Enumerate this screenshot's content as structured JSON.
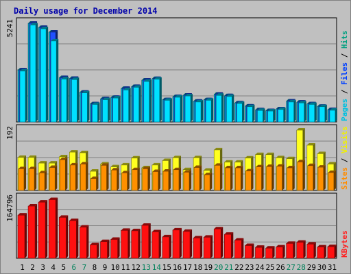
{
  "chart_data": {
    "type": "bar",
    "title": "Daily usage for December 2014",
    "categories": [
      "1",
      "2",
      "3",
      "4",
      "5",
      "6",
      "7",
      "8",
      "9",
      "10",
      "11",
      "12",
      "13",
      "14",
      "15",
      "16",
      "17",
      "18",
      "19",
      "20",
      "21",
      "22",
      "23",
      "24",
      "25",
      "26",
      "27",
      "28",
      "29",
      "30",
      "31"
    ],
    "weekend_days": [
      "6",
      "7",
      "13",
      "14",
      "20",
      "21",
      "27",
      "28"
    ],
    "grid": true,
    "panels": [
      {
        "name": "pages-files-hits",
        "axis_max_label": "5241",
        "ylim": [
          0,
          5241
        ],
        "legend": [
          {
            "label": "Pages",
            "color": "#00c0e0"
          },
          {
            "label": "Files",
            "color": "#0040ff"
          },
          {
            "label": "Hits",
            "color": "#00a080"
          }
        ],
        "series": [
          {
            "name": "Hits",
            "color": "#00a8cc",
            "values": [
              2760,
              5241,
              5020,
              4770,
              2350,
              2310,
              1580,
              960,
              1230,
              1300,
              1780,
              1880,
              2220,
              2300,
              1180,
              1340,
              1420,
              1100,
              1180,
              1470,
              1390,
              1010,
              840,
              640,
              600,
              690,
              1110,
              1050,
              960,
              830,
              650
            ]
          },
          {
            "name": "Files",
            "color": "#2050ff",
            "values": [
              2760,
              5241,
              5020,
              4770,
              2350,
              2310,
              1580,
              960,
              1230,
              1300,
              1780,
              1880,
              2220,
              2300,
              1180,
              1340,
              1420,
              1100,
              1180,
              1470,
              1390,
              1010,
              840,
              640,
              600,
              690,
              1110,
              1050,
              960,
              830,
              650
            ]
          },
          {
            "name": "Pages",
            "color": "#00e0ff",
            "values": [
              2700,
              5150,
              4950,
              4300,
              2280,
              2250,
              1540,
              930,
              1180,
              1270,
              1700,
              1840,
              2150,
              2270,
              1150,
              1310,
              1380,
              1060,
              1150,
              1410,
              1350,
              980,
              810,
              610,
              580,
              660,
              1060,
              1010,
              930,
              810,
              620
            ]
          }
        ]
      },
      {
        "name": "visits-sites",
        "axis_max_label": "192",
        "ylim": [
          0,
          192
        ],
        "legend": [
          {
            "label": "Sites",
            "color": "#ff8c00"
          },
          {
            "label": "Visits",
            "color": "#f0f000"
          }
        ],
        "series": [
          {
            "name": "Visits",
            "color": "#ffff20",
            "values": [
              105,
              105,
              87,
              87,
              107,
              122,
              120,
              61,
              84,
              75,
              81,
              103,
              72,
              81,
              95,
              104,
              66,
              104,
              64,
              129,
              90,
              90,
              103,
              114,
              114,
              104,
              101,
              192,
              144,
              117,
              84
            ]
          },
          {
            "name": "Sites",
            "color": "#ff9000",
            "values": [
              69,
              69,
              56,
              73,
              98,
              81,
              84,
              38,
              80,
              65,
              56,
              66,
              69,
              60,
              61,
              66,
              58,
              73,
              50,
              80,
              72,
              72,
              62,
              75,
              76,
              77,
              72,
              91,
              79,
              74,
              57
            ]
          }
        ]
      },
      {
        "name": "kbytes",
        "axis_max_label": "164796",
        "ylim": [
          0,
          164796
        ],
        "legend": [
          {
            "label": "KBytes",
            "color": "#ff2020"
          }
        ],
        "series": [
          {
            "name": "KBytes",
            "color": "#ff1010",
            "values": [
              119000,
              144000,
              155000,
              162000,
              113000,
              104000,
              86000,
              37000,
              46000,
              52000,
              77000,
              76000,
              91000,
              73000,
              59000,
              78000,
              74000,
              56000,
              58000,
              81000,
              66000,
              50000,
              35000,
              30000,
              28000,
              31000,
              41000,
              44000,
              39000,
              31000,
              32000
            ]
          }
        ]
      }
    ]
  }
}
